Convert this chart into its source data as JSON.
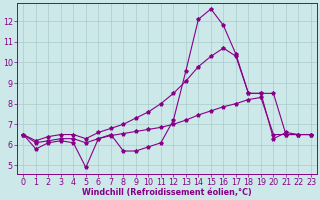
{
  "x": [
    0,
    1,
    2,
    3,
    4,
    5,
    6,
    7,
    8,
    9,
    10,
    11,
    12,
    13,
    14,
    15,
    16,
    17,
    18,
    19,
    20,
    21,
    22,
    23
  ],
  "line_jagged": [
    6.5,
    5.8,
    6.1,
    6.2,
    6.1,
    4.9,
    6.3,
    6.5,
    5.7,
    5.7,
    5.9,
    6.1,
    7.2,
    9.6,
    12.1,
    12.6,
    11.8,
    10.4,
    8.5,
    8.5,
    6.3,
    6.6,
    6.5,
    6.5
  ],
  "line_upper": [
    6.5,
    6.2,
    6.4,
    6.5,
    6.5,
    6.3,
    6.6,
    6.8,
    7.0,
    7.3,
    7.6,
    8.0,
    8.5,
    9.1,
    9.8,
    10.3,
    10.7,
    10.3,
    8.5,
    8.5,
    8.5,
    6.5,
    6.5,
    6.5
  ],
  "line_lower": [
    6.5,
    6.1,
    6.2,
    6.3,
    6.3,
    6.1,
    6.3,
    6.45,
    6.55,
    6.65,
    6.75,
    6.85,
    7.0,
    7.2,
    7.45,
    7.65,
    7.85,
    8.0,
    8.2,
    8.3,
    6.5,
    6.5,
    6.5,
    6.5
  ],
  "bg_color": "#cce8e8",
  "line_color": "#880088",
  "grid_color": "#aacccc",
  "xlabel": "Windchill (Refroidissement éolien,°C)",
  "ylim": [
    4.6,
    12.9
  ],
  "xlim": [
    -0.5,
    23.5
  ],
  "yticks": [
    5,
    6,
    7,
    8,
    9,
    10,
    11,
    12
  ],
  "xticks": [
    0,
    1,
    2,
    3,
    4,
    5,
    6,
    7,
    8,
    9,
    10,
    11,
    12,
    13,
    14,
    15,
    16,
    17,
    18,
    19,
    20,
    21,
    22,
    23
  ],
  "tick_color": "#880088",
  "label_fontsize": 5.8,
  "tick_labelsize": 5.8
}
